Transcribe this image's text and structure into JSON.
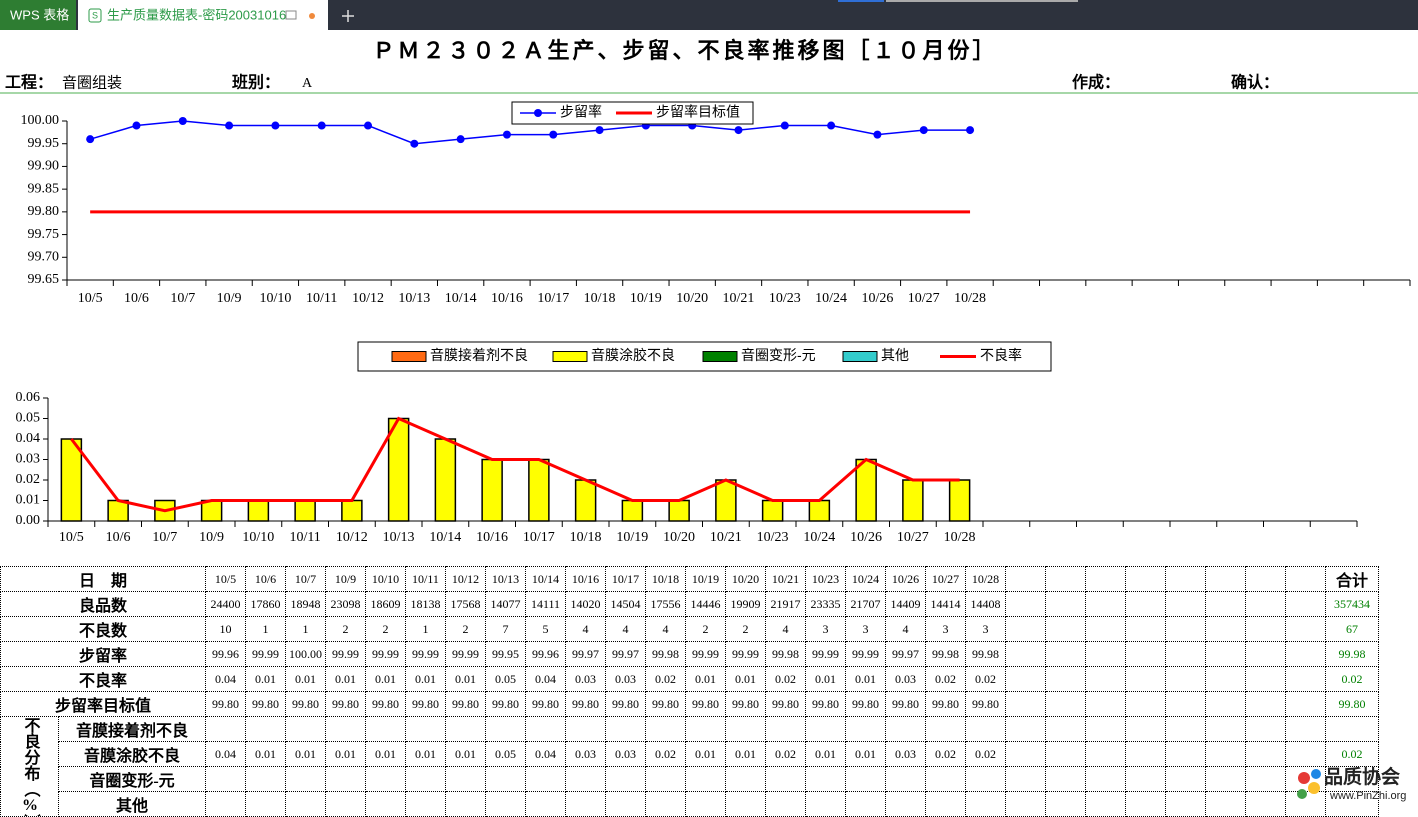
{
  "tabs": {
    "app": "WPS 表格",
    "file": "生产质量数据表-密码20031016"
  },
  "header": {
    "title": "ＰＭ２３０２Ａ生产、步留、不良率推移图［１０月份］",
    "process_label": "工程：",
    "process": "音圈组装",
    "shift_label": "班别：",
    "shift": "A",
    "author_label": "作成：",
    "confirm_label": "确认："
  },
  "chart_data": [
    {
      "type": "line",
      "categories": [
        "10/5",
        "10/6",
        "10/7",
        "10/9",
        "10/10",
        "10/11",
        "10/12",
        "10/13",
        "10/14",
        "10/16",
        "10/17",
        "10/18",
        "10/19",
        "10/20",
        "10/21",
        "10/23",
        "10/24",
        "10/26",
        "10/27",
        "10/28",
        null,
        null,
        null,
        null,
        null,
        null,
        null,
        null,
        null
      ],
      "series": [
        {
          "name": "步留率",
          "color": "#0000ff",
          "marker": "circle",
          "values": [
            99.96,
            99.99,
            100.0,
            99.99,
            99.99,
            99.99,
            99.99,
            99.95,
            99.96,
            99.97,
            99.97,
            99.98,
            99.99,
            99.99,
            99.98,
            99.99,
            99.99,
            99.97,
            99.98,
            99.98,
            null,
            null,
            null,
            null,
            null,
            null,
            null,
            null,
            null
          ]
        },
        {
          "name": "步留率目标值",
          "color": "#ff0000",
          "values": [
            99.8,
            99.8,
            99.8,
            99.8,
            99.8,
            99.8,
            99.8,
            99.8,
            99.8,
            99.8,
            99.8,
            99.8,
            99.8,
            99.8,
            99.8,
            99.8,
            99.8,
            99.8,
            99.8,
            99.8,
            null,
            null,
            null,
            null,
            null,
            null,
            null,
            null,
            null
          ]
        }
      ],
      "ylim": [
        99.65,
        100.0
      ],
      "yticks": [
        99.65,
        {
          "value": 99.7,
          "label": "99.70"
        },
        99.75,
        {
          "value": 99.8,
          "label": "99.80"
        },
        99.85,
        {
          "value": 99.9,
          "label": "99.90"
        },
        99.95,
        {
          "value": 100.0,
          "label": "100.00"
        }
      ],
      "grid": false,
      "legend": "top"
    },
    {
      "type": "bar",
      "categories": [
        "10/5",
        "10/6",
        "10/7",
        "10/9",
        "10/10",
        "10/11",
        "10/12",
        "10/13",
        "10/14",
        "10/16",
        "10/17",
        "10/18",
        "10/19",
        "10/20",
        "10/21",
        "10/23",
        "10/24",
        "10/26",
        "10/27",
        "10/28",
        null,
        null,
        null,
        null,
        null,
        null,
        null,
        null
      ],
      "series": [
        {
          "name": "音膜接着剂不良",
          "type": "bar",
          "color": "#ff6a13",
          "values": [
            null,
            null,
            null,
            null,
            null,
            null,
            null,
            null,
            null,
            null,
            null,
            null,
            null,
            null,
            null,
            null,
            null,
            null,
            null,
            null,
            null,
            null,
            null,
            null,
            null,
            null,
            null,
            null
          ]
        },
        {
          "name": "音膜涂胶不良",
          "type": "bar",
          "color": "#ffff00",
          "values": [
            0.04,
            0.01,
            0.01,
            0.01,
            0.01,
            0.01,
            0.01,
            0.05,
            0.04,
            0.03,
            0.03,
            0.02,
            0.01,
            0.01,
            0.02,
            0.01,
            0.01,
            0.03,
            0.02,
            0.02,
            null,
            null,
            null,
            null,
            null,
            null,
            null,
            null
          ]
        },
        {
          "name": "音圈变形-元",
          "type": "bar",
          "color": "#008000",
          "values": [
            null,
            null,
            null,
            null,
            null,
            null,
            null,
            null,
            null,
            null,
            null,
            null,
            null,
            null,
            null,
            null,
            null,
            null,
            null,
            null,
            null,
            null,
            null,
            null,
            null,
            null,
            null,
            null
          ]
        },
        {
          "name": "其他",
          "type": "bar",
          "color": "#33cccc",
          "values": [
            null,
            null,
            null,
            null,
            null,
            null,
            null,
            null,
            null,
            null,
            null,
            null,
            null,
            null,
            null,
            null,
            null,
            null,
            null,
            null,
            null,
            null,
            null,
            null,
            null,
            null,
            null,
            null
          ]
        },
        {
          "name": "不良率",
          "type": "line",
          "color": "#ff0000",
          "values": [
            0.04,
            0.01,
            0.005,
            0.01,
            0.01,
            0.01,
            0.01,
            0.05,
            0.04,
            0.03,
            0.03,
            0.02,
            0.01,
            0.01,
            0.02,
            0.01,
            0.01,
            0.03,
            0.02,
            0.02,
            null,
            null,
            null,
            null,
            null,
            null,
            null,
            null
          ]
        }
      ],
      "ylim": [
        0,
        0.06
      ],
      "yticks": [
        {
          "value": 0,
          "label": "0.00"
        },
        0.01,
        0.02,
        0.03,
        0.04,
        0.05,
        0.06
      ],
      "grid": false,
      "legend": "top"
    }
  ],
  "table": {
    "header": {
      "label": "日　期",
      "dates": [
        "10/5",
        "10/6",
        "10/7",
        "10/9",
        "10/10",
        "10/11",
        "10/12",
        "10/13",
        "10/14",
        "10/16",
        "10/17",
        "10/18",
        "10/19",
        "10/20",
        "10/21",
        "10/23",
        "10/24",
        "10/26",
        "10/27",
        "10/28"
      ],
      "total": "合计"
    },
    "rows": [
      {
        "label": "良品数",
        "cells": [
          "24400",
          "17860",
          "18948",
          "23098",
          "18609",
          "18138",
          "17568",
          "14077",
          "14111",
          "14020",
          "14504",
          "17556",
          "14446",
          "19909",
          "21917",
          "23335",
          "21707",
          "14409",
          "14414",
          "14408"
        ],
        "total": "357434"
      },
      {
        "label": "不良数",
        "cells": [
          "10",
          "1",
          "1",
          "2",
          "2",
          "1",
          "2",
          "7",
          "5",
          "4",
          "4",
          "4",
          "2",
          "2",
          "4",
          "3",
          "3",
          "4",
          "3",
          "3"
        ],
        "total": "67"
      },
      {
        "label": "步留率",
        "cells": [
          "99.96",
          "99.99",
          "100.00",
          "99.99",
          "99.99",
          "99.99",
          "99.99",
          "99.95",
          "99.96",
          "99.97",
          "99.97",
          "99.98",
          "99.99",
          "99.99",
          "99.98",
          "99.99",
          "99.99",
          "99.97",
          "99.98",
          "99.98"
        ],
        "total": "99.98"
      },
      {
        "label": "不良率",
        "cells": [
          "0.04",
          "0.01",
          "0.01",
          "0.01",
          "0.01",
          "0.01",
          "0.01",
          "0.05",
          "0.04",
          "0.03",
          "0.03",
          "0.02",
          "0.01",
          "0.01",
          "0.02",
          "0.01",
          "0.01",
          "0.03",
          "0.02",
          "0.02"
        ],
        "total": "0.02"
      },
      {
        "label": "步留率目标值",
        "cells": [
          "99.80",
          "99.80",
          "99.80",
          "99.80",
          "99.80",
          "99.80",
          "99.80",
          "99.80",
          "99.80",
          "99.80",
          "99.80",
          "99.80",
          "99.80",
          "99.80",
          "99.80",
          "99.80",
          "99.80",
          "99.80",
          "99.80",
          "99.80"
        ],
        "total": "99.80"
      }
    ],
    "group": {
      "label": "不良分布（%）",
      "rows": [
        {
          "label": "音膜接着剂不良"
        },
        {
          "label": "音膜涂胶不良",
          "cells": [
            "0.04",
            "0.01",
            "0.01",
            "0.01",
            "0.01",
            "0.01",
            "0.01",
            "0.05",
            "0.04",
            "0.03",
            "0.03",
            "0.02",
            "0.01",
            "0.01",
            "0.02",
            "0.01",
            "0.01",
            "0.03",
            "0.02",
            "0.02"
          ],
          "total": "0.02"
        },
        {
          "label": "音圈变形-元"
        },
        {
          "label": "其他"
        }
      ]
    }
  },
  "watermark": {
    "name": "品质协会",
    "url": "www.PinZhi.org"
  }
}
